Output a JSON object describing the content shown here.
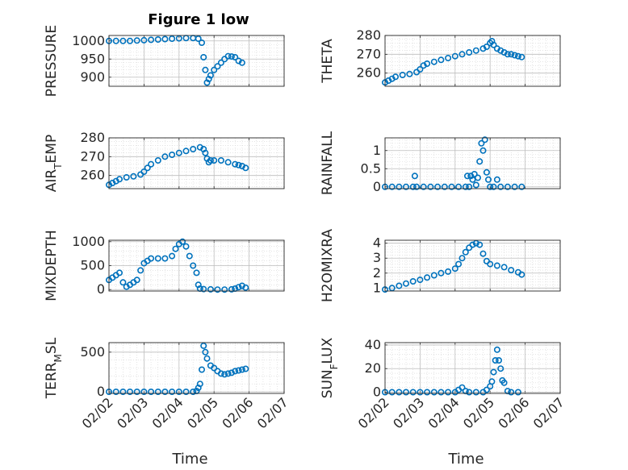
{
  "chart_data": {
    "type": "scatter",
    "title": "Figure 1 low",
    "marker_color": "#0072BD",
    "x_ticks": [
      "02/02",
      "02/03",
      "02/04",
      "02/05",
      "02/06",
      "02/07"
    ],
    "xlabel": "Time",
    "panels": [
      {
        "id": "pressure",
        "ylabel": "PRESSURE",
        "ylim": [
          875,
          1015
        ],
        "yticks": [
          900,
          950,
          1000
        ],
        "points": [
          [
            0,
            1000
          ],
          [
            0.2,
            1000
          ],
          [
            0.4,
            1000
          ],
          [
            0.6,
            1000
          ],
          [
            0.8,
            1001
          ],
          [
            1.0,
            1002
          ],
          [
            1.2,
            1003
          ],
          [
            1.4,
            1004
          ],
          [
            1.6,
            1005
          ],
          [
            1.8,
            1006
          ],
          [
            2.0,
            1007
          ],
          [
            2.2,
            1008
          ],
          [
            2.4,
            1008
          ],
          [
            2.55,
            1006
          ],
          [
            2.65,
            995
          ],
          [
            2.7,
            955
          ],
          [
            2.75,
            920
          ],
          [
            2.8,
            885
          ],
          [
            2.85,
            895
          ],
          [
            2.9,
            905
          ],
          [
            3.0,
            920
          ],
          [
            3.1,
            930
          ],
          [
            3.2,
            940
          ],
          [
            3.3,
            950
          ],
          [
            3.4,
            958
          ],
          [
            3.5,
            957
          ],
          [
            3.6,
            955
          ],
          [
            3.7,
            945
          ],
          [
            3.8,
            940
          ]
        ]
      },
      {
        "id": "theta",
        "ylabel": "THETA",
        "ylim": [
          253,
          280
        ],
        "yticks": [
          260,
          270,
          280
        ],
        "points": [
          [
            0,
            255
          ],
          [
            0.1,
            256
          ],
          [
            0.2,
            257
          ],
          [
            0.3,
            258
          ],
          [
            0.5,
            259
          ],
          [
            0.7,
            259.5
          ],
          [
            0.9,
            260.5
          ],
          [
            1.0,
            262
          ],
          [
            1.1,
            264
          ],
          [
            1.2,
            265
          ],
          [
            1.4,
            266
          ],
          [
            1.6,
            267
          ],
          [
            1.8,
            268
          ],
          [
            2.0,
            269
          ],
          [
            2.2,
            270
          ],
          [
            2.4,
            271
          ],
          [
            2.6,
            272
          ],
          [
            2.8,
            273
          ],
          [
            2.9,
            274
          ],
          [
            3.0,
            276
          ],
          [
            3.05,
            277
          ],
          [
            3.1,
            275
          ],
          [
            3.2,
            273
          ],
          [
            3.3,
            272
          ],
          [
            3.4,
            271
          ],
          [
            3.5,
            270
          ],
          [
            3.6,
            270
          ],
          [
            3.7,
            269.5
          ],
          [
            3.8,
            269
          ],
          [
            3.9,
            268.5
          ]
        ]
      },
      {
        "id": "air_temp",
        "ylabel": "AIR_TEMP",
        "ylim": [
          253,
          280
        ],
        "yticks": [
          260,
          270,
          280
        ],
        "points": [
          [
            0,
            255
          ],
          [
            0.1,
            256
          ],
          [
            0.2,
            257
          ],
          [
            0.3,
            258
          ],
          [
            0.5,
            259
          ],
          [
            0.7,
            259.5
          ],
          [
            0.9,
            260.5
          ],
          [
            1.0,
            262
          ],
          [
            1.1,
            264
          ],
          [
            1.2,
            266
          ],
          [
            1.4,
            268
          ],
          [
            1.6,
            270
          ],
          [
            1.8,
            271
          ],
          [
            2.0,
            272
          ],
          [
            2.2,
            273
          ],
          [
            2.4,
            274
          ],
          [
            2.6,
            275
          ],
          [
            2.7,
            274
          ],
          [
            2.75,
            272
          ],
          [
            2.8,
            269
          ],
          [
            2.85,
            267
          ],
          [
            2.9,
            268
          ],
          [
            3.0,
            268
          ],
          [
            3.2,
            268
          ],
          [
            3.4,
            267
          ],
          [
            3.6,
            266
          ],
          [
            3.7,
            265.5
          ],
          [
            3.8,
            265
          ],
          [
            3.9,
            264
          ]
        ]
      },
      {
        "id": "rainfall",
        "ylabel": "RAINFALL",
        "ylim": [
          -0.05,
          1.35
        ],
        "yticks": [
          0,
          0.5,
          1
        ],
        "points": [
          [
            0,
            0
          ],
          [
            0.2,
            0
          ],
          [
            0.4,
            0
          ],
          [
            0.6,
            0
          ],
          [
            0.8,
            0
          ],
          [
            0.85,
            0.3
          ],
          [
            0.9,
            0
          ],
          [
            1.1,
            0
          ],
          [
            1.3,
            0
          ],
          [
            1.5,
            0
          ],
          [
            1.7,
            0
          ],
          [
            1.9,
            0
          ],
          [
            2.1,
            0
          ],
          [
            2.3,
            0
          ],
          [
            2.35,
            0.3
          ],
          [
            2.4,
            0
          ],
          [
            2.45,
            0.3
          ],
          [
            2.5,
            0.2
          ],
          [
            2.55,
            0.35
          ],
          [
            2.6,
            0.05
          ],
          [
            2.65,
            0.25
          ],
          [
            2.7,
            0.7
          ],
          [
            2.75,
            1.2
          ],
          [
            2.8,
            1.0
          ],
          [
            2.85,
            1.3
          ],
          [
            2.9,
            0.4
          ],
          [
            2.95,
            0.2
          ],
          [
            3.0,
            0
          ],
          [
            3.1,
            0
          ],
          [
            3.2,
            0.2
          ],
          [
            3.3,
            0
          ],
          [
            3.5,
            0
          ],
          [
            3.7,
            0
          ],
          [
            3.9,
            0
          ]
        ]
      },
      {
        "id": "mixdepth",
        "ylabel": "MIXDEPTH",
        "ylim": [
          -30,
          1030
        ],
        "yticks": [
          0,
          500,
          1000
        ],
        "points": [
          [
            0,
            200
          ],
          [
            0.1,
            250
          ],
          [
            0.2,
            300
          ],
          [
            0.3,
            350
          ],
          [
            0.4,
            150
          ],
          [
            0.5,
            60
          ],
          [
            0.6,
            100
          ],
          [
            0.7,
            150
          ],
          [
            0.8,
            200
          ],
          [
            0.9,
            400
          ],
          [
            1.0,
            550
          ],
          [
            1.1,
            600
          ],
          [
            1.2,
            650
          ],
          [
            1.4,
            650
          ],
          [
            1.6,
            650
          ],
          [
            1.8,
            700
          ],
          [
            1.9,
            850
          ],
          [
            2.0,
            950
          ],
          [
            2.1,
            1000
          ],
          [
            2.2,
            900
          ],
          [
            2.3,
            700
          ],
          [
            2.4,
            500
          ],
          [
            2.5,
            350
          ],
          [
            2.55,
            100
          ],
          [
            2.6,
            20
          ],
          [
            2.7,
            10
          ],
          [
            2.9,
            5
          ],
          [
            3.1,
            0
          ],
          [
            3.3,
            0
          ],
          [
            3.5,
            5
          ],
          [
            3.6,
            20
          ],
          [
            3.7,
            50
          ],
          [
            3.8,
            80
          ],
          [
            3.9,
            40
          ]
        ]
      },
      {
        "id": "h2omixra",
        "ylabel": "H2OMIXRA",
        "ylim": [
          0.8,
          4.2
        ],
        "yticks": [
          1,
          2,
          3,
          4
        ],
        "points": [
          [
            0,
            0.9
          ],
          [
            0.2,
            1.0
          ],
          [
            0.4,
            1.15
          ],
          [
            0.6,
            1.3
          ],
          [
            0.8,
            1.45
          ],
          [
            1.0,
            1.55
          ],
          [
            1.2,
            1.7
          ],
          [
            1.4,
            1.85
          ],
          [
            1.6,
            2.0
          ],
          [
            1.8,
            2.1
          ],
          [
            2.0,
            2.3
          ],
          [
            2.1,
            2.6
          ],
          [
            2.2,
            3.0
          ],
          [
            2.3,
            3.4
          ],
          [
            2.4,
            3.7
          ],
          [
            2.5,
            3.9
          ],
          [
            2.6,
            4.0
          ],
          [
            2.7,
            3.9
          ],
          [
            2.8,
            3.3
          ],
          [
            2.9,
            2.8
          ],
          [
            3.0,
            2.6
          ],
          [
            3.2,
            2.5
          ],
          [
            3.4,
            2.4
          ],
          [
            3.6,
            2.2
          ],
          [
            3.8,
            2.05
          ],
          [
            3.9,
            1.9
          ]
        ]
      },
      {
        "id": "terr_msl",
        "ylabel": "TERR_MSL",
        "ylim": [
          -20,
          620
        ],
        "yticks": [
          0,
          500
        ],
        "points": [
          [
            0,
            0
          ],
          [
            0.2,
            0
          ],
          [
            0.4,
            0
          ],
          [
            0.6,
            0
          ],
          [
            0.8,
            0
          ],
          [
            1.0,
            0
          ],
          [
            1.2,
            0
          ],
          [
            1.4,
            0
          ],
          [
            1.6,
            0
          ],
          [
            1.8,
            0
          ],
          [
            2.0,
            0
          ],
          [
            2.2,
            0
          ],
          [
            2.4,
            0
          ],
          [
            2.5,
            10
          ],
          [
            2.55,
            50
          ],
          [
            2.6,
            100
          ],
          [
            2.65,
            280
          ],
          [
            2.7,
            580
          ],
          [
            2.75,
            500
          ],
          [
            2.8,
            420
          ],
          [
            2.9,
            330
          ],
          [
            3.0,
            300
          ],
          [
            3.1,
            260
          ],
          [
            3.2,
            230
          ],
          [
            3.3,
            220
          ],
          [
            3.4,
            230
          ],
          [
            3.5,
            240
          ],
          [
            3.6,
            260
          ],
          [
            3.7,
            270
          ],
          [
            3.8,
            280
          ],
          [
            3.9,
            290
          ]
        ]
      },
      {
        "id": "sun_flux",
        "ylabel": "SUN_FLUX",
        "ylim": [
          -1,
          42
        ],
        "yticks": [
          0,
          20,
          40
        ],
        "points": [
          [
            0,
            0
          ],
          [
            0.2,
            0
          ],
          [
            0.4,
            0
          ],
          [
            0.6,
            0
          ],
          [
            0.8,
            0
          ],
          [
            1.0,
            0
          ],
          [
            1.2,
            0
          ],
          [
            1.4,
            0
          ],
          [
            1.6,
            0
          ],
          [
            1.8,
            0
          ],
          [
            2.0,
            0
          ],
          [
            2.1,
            2
          ],
          [
            2.2,
            4
          ],
          [
            2.3,
            1
          ],
          [
            2.4,
            0
          ],
          [
            2.6,
            0
          ],
          [
            2.8,
            0
          ],
          [
            2.9,
            2
          ],
          [
            3.0,
            5
          ],
          [
            3.05,
            9
          ],
          [
            3.1,
            17
          ],
          [
            3.15,
            27
          ],
          [
            3.2,
            36
          ],
          [
            3.25,
            27
          ],
          [
            3.3,
            20
          ],
          [
            3.35,
            10
          ],
          [
            3.4,
            8
          ],
          [
            3.5,
            1
          ],
          [
            3.6,
            0
          ],
          [
            3.8,
            0
          ]
        ]
      }
    ]
  }
}
